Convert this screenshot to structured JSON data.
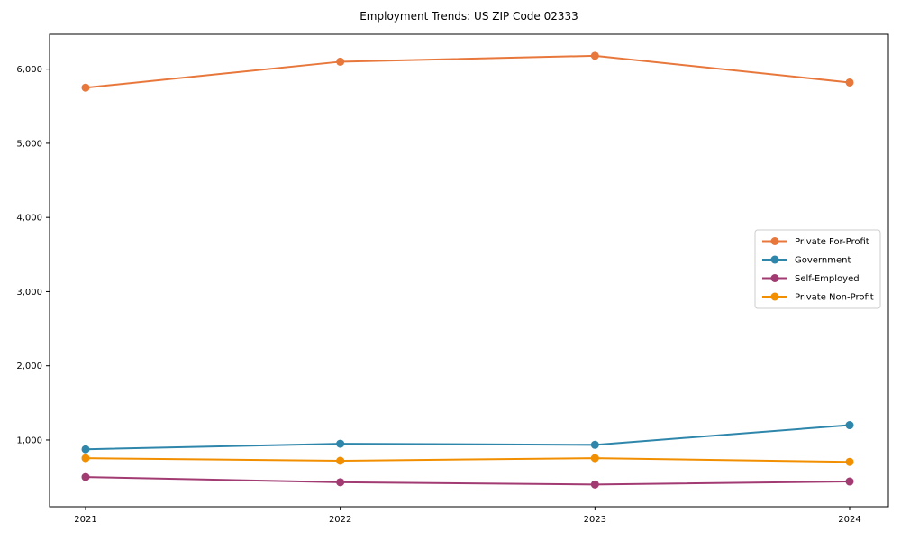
{
  "figure": {
    "title": "Employment Trends: US ZIP Code 02333"
  },
  "chart_data": {
    "type": "line",
    "title": "Employment Trends: US ZIP Code 02333",
    "xlabel": "",
    "ylabel": "",
    "categories": [
      "2021",
      "2022",
      "2023",
      "2024"
    ],
    "series": [
      {
        "name": "Private For-Profit",
        "color": "#E8773C",
        "values": [
          5750,
          6100,
          6180,
          5820
        ]
      },
      {
        "name": "Government",
        "color": "#2E86AB",
        "values": [
          875,
          950,
          935,
          1200
        ]
      },
      {
        "name": "Self-Employed",
        "color": "#A23B72",
        "values": [
          500,
          430,
          400,
          440
        ]
      },
      {
        "name": "Private Non-Profit",
        "color": "#F18F01",
        "values": [
          755,
          720,
          755,
          705
        ]
      }
    ],
    "yticks": [
      1000,
      2000,
      3000,
      4000,
      5000,
      6000
    ],
    "ytick_labels": [
      "1,000",
      "2,000",
      "3,000",
      "4,000",
      "5,000",
      "6,000"
    ],
    "ylim": [
      100,
      6470
    ],
    "grid": false,
    "legend_position": "center-right",
    "marker": "circle",
    "background_color": "#ffffff",
    "axis_color": "#000000",
    "legend_border_color": "#cccccc"
  }
}
